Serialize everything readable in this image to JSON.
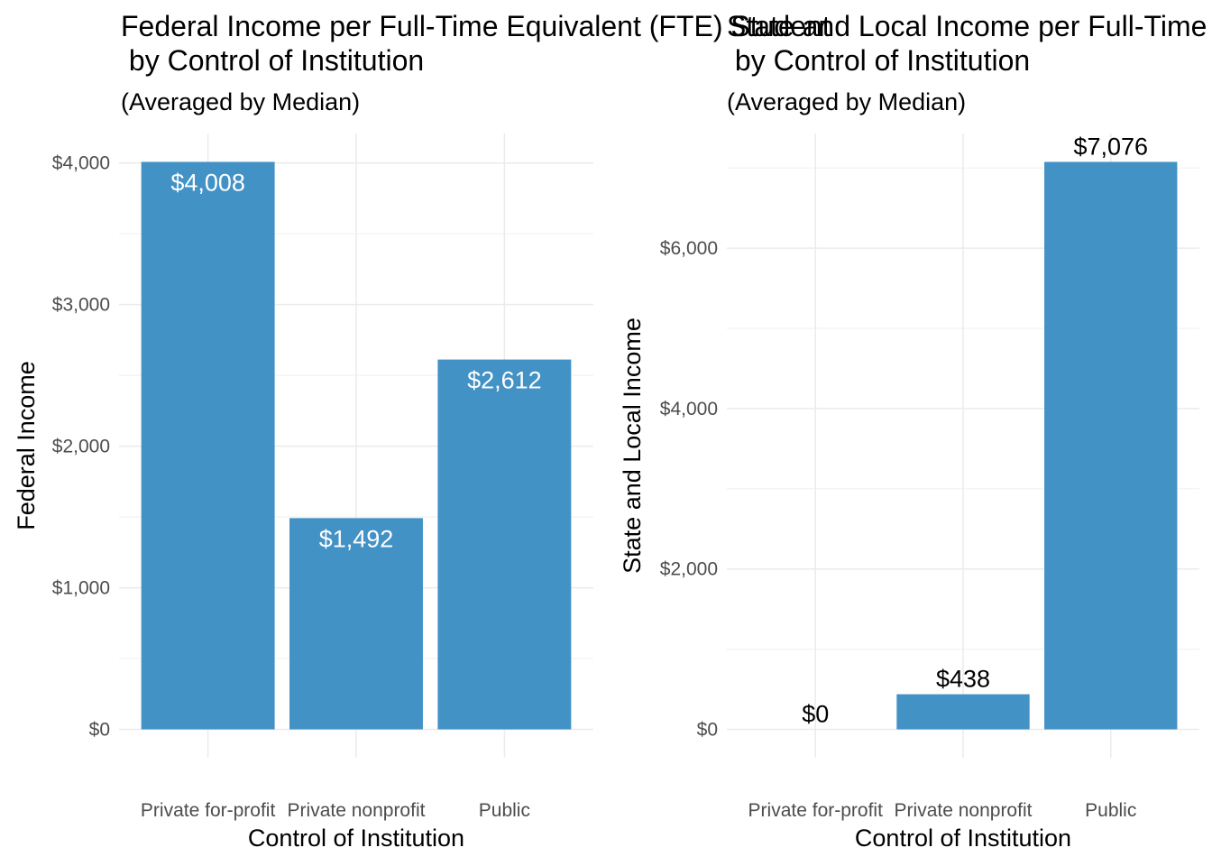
{
  "colors": {
    "bar": "#4292c6",
    "label_inside": "#ffffff",
    "label_outside": "#000000"
  },
  "chart_data": [
    {
      "type": "bar",
      "title": "Federal Income per Full-Time Equivalent (FTE) Student",
      "title_line2": " by Control of Institution",
      "subtitle": "(Averaged by Median)",
      "xlabel": "Control of Institution",
      "ylabel": "Federal Income",
      "categories": [
        "Private for-profit",
        "Private nonprofit",
        "Public"
      ],
      "values": [
        4008,
        1492,
        2612
      ],
      "value_labels": [
        "$4,008",
        "$1,492",
        "$2,612"
      ],
      "label_position": "inside-top",
      "ylim": [
        0,
        4008
      ],
      "yticks": [
        0,
        1000,
        2000,
        3000,
        4000
      ],
      "ytick_labels": [
        "$0",
        "$1,000",
        "$2,000",
        "$3,000",
        "$4,000"
      ],
      "grid": true,
      "legend": "none"
    },
    {
      "type": "bar",
      "title": "State and Local Income per Full-Time Equivalent (FTE) Student",
      "title_line2": " by Control of Institution",
      "subtitle": "(Averaged by Median)",
      "xlabel": "Control of Institution",
      "ylabel": "State and Local Income",
      "categories": [
        "Private for-profit",
        "Private nonprofit",
        "Public"
      ],
      "values": [
        0,
        438,
        7076
      ],
      "value_labels": [
        "$0",
        "$438",
        "$7,076"
      ],
      "label_position": "above",
      "ylim": [
        0,
        7076
      ],
      "yticks": [
        0,
        2000,
        4000,
        6000
      ],
      "ytick_labels": [
        "$0",
        "$2,000",
        "$4,000",
        "$6,000"
      ],
      "grid": true,
      "legend": "none"
    }
  ]
}
